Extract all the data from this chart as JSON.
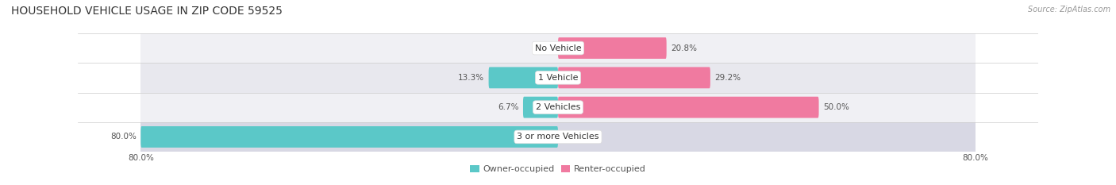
{
  "title": "HOUSEHOLD VEHICLE USAGE IN ZIP CODE 59525",
  "source": "Source: ZipAtlas.com",
  "categories": [
    "No Vehicle",
    "1 Vehicle",
    "2 Vehicles",
    "3 or more Vehicles"
  ],
  "owner_values": [
    0.0,
    13.3,
    6.7,
    80.0
  ],
  "renter_values": [
    20.8,
    29.2,
    50.0,
    0.0
  ],
  "owner_color": "#5bc8c8",
  "renter_color": "#f07aa0",
  "row_bg_even": "#f0f0f0",
  "row_bg_odd": "#fafafa",
  "row_bg_dark": "#e0e0e8",
  "max_value": 80.0,
  "title_fontsize": 10,
  "label_fontsize": 8,
  "bar_label_fontsize": 7.5,
  "legend_fontsize": 8,
  "source_fontsize": 7,
  "background_color": "#ffffff",
  "text_color": "#555555",
  "center_label_color": "#333333"
}
